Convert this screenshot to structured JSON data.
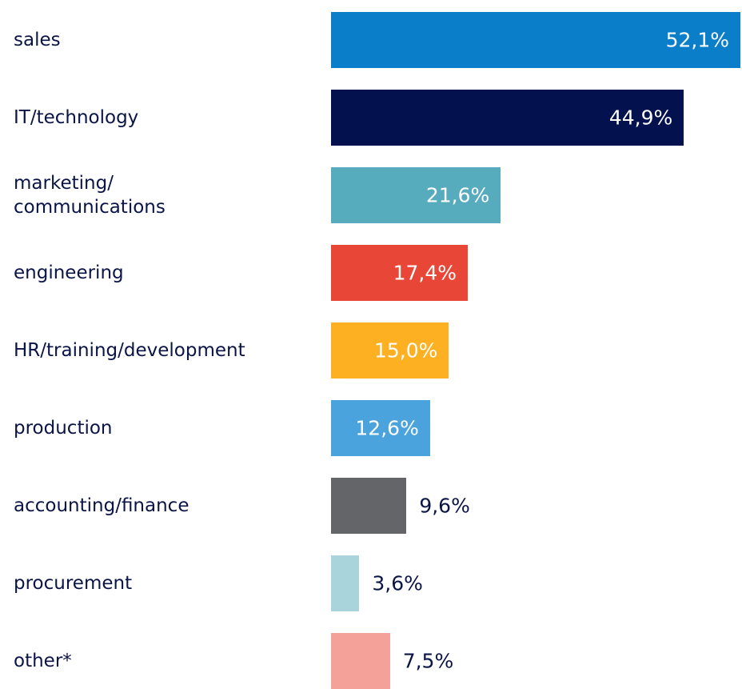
{
  "chart_data": {
    "type": "bar",
    "orientation": "horizontal",
    "categories": [
      "sales",
      "IT/technology",
      "marketing/\ncommunications",
      "engineering",
      "HR/training/development",
      "production",
      "accounting/finance",
      "procurement",
      "other*"
    ],
    "values": [
      52.1,
      44.9,
      21.6,
      17.4,
      15.0,
      12.6,
      9.6,
      3.6,
      7.5
    ],
    "value_labels": [
      "52,1%",
      "44,9%",
      "21,6%",
      "17,4%",
      "15,0%",
      "12,6%",
      "9,6%",
      "3,6%",
      "7,5%"
    ],
    "colors": [
      "#0a7ec8",
      "#03114e",
      "#56abbd",
      "#e84636",
      "#fdb022",
      "#4aa3dc",
      "#646569",
      "#aad4dc",
      "#f4a19a"
    ]
  }
}
